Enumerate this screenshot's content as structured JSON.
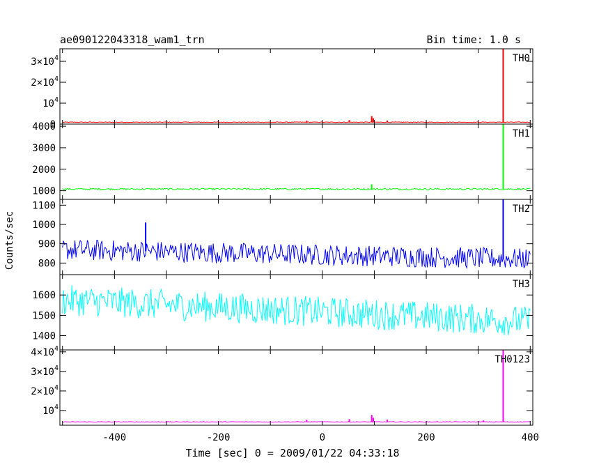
{
  "header": {
    "title": "ae090122043318_wam1_trn",
    "bin_time": "Bin time: 1.0 s"
  },
  "chart_data": {
    "type": "line",
    "title": "ae090122043318_wam1_trn",
    "subtitle": "Bin time: 1.0 s",
    "xlabel": "Time [sec] 0 = 2009/01/22 04:33:18",
    "ylabel": "Counts/sec",
    "xlim": [
      -505,
      405
    ],
    "x_ticks": [
      -400,
      -200,
      0,
      200,
      400
    ],
    "panels": [
      {
        "name": "TH0",
        "color": "#ff0000",
        "ylim": [
          0,
          36000
        ],
        "ticks": [
          {
            "v": 0,
            "base": "0",
            "exp": ""
          },
          {
            "v": 10000,
            "base": "10",
            "exp": "4"
          },
          {
            "v": 20000,
            "base": "2×10",
            "exp": "4"
          },
          {
            "v": 30000,
            "base": "3×10",
            "exp": "4"
          }
        ],
        "baseline": 900,
        "noise": 150,
        "spikes": [
          [
            -30,
            1600
          ],
          [
            52,
            1900
          ],
          [
            60,
            900
          ],
          [
            72,
            800
          ],
          [
            95,
            3800
          ],
          [
            98,
            2800
          ],
          [
            125,
            1700
          ],
          [
            155,
            700
          ],
          [
            310,
            1100
          ],
          [
            348,
            36000
          ]
        ]
      },
      {
        "name": "TH1",
        "color": "#00ff00",
        "ylim": [
          600,
          4100
        ],
        "ticks": [
          {
            "v": 1000,
            "base": "1000",
            "exp": ""
          },
          {
            "v": 2000,
            "base": "2000",
            "exp": ""
          },
          {
            "v": 3000,
            "base": "3000",
            "exp": ""
          },
          {
            "v": 4000,
            "base": "4000",
            "exp": ""
          }
        ],
        "baseline": 1080,
        "noise": 35,
        "spikes": [
          [
            95,
            1300
          ],
          [
            348,
            4100
          ]
        ]
      },
      {
        "name": "TH2",
        "color": "#0000ff",
        "ylim": [
          740,
          1130
        ],
        "ticks": [
          {
            "v": 800,
            "base": "800",
            "exp": ""
          },
          {
            "v": 900,
            "base": "900",
            "exp": ""
          },
          {
            "v": 1000,
            "base": "1000",
            "exp": ""
          },
          {
            "v": 1100,
            "base": "1100",
            "exp": ""
          }
        ],
        "trend": [
          [
            -500,
            870
          ],
          [
            400,
            820
          ]
        ],
        "noise": 55,
        "spikes": [
          [
            -340,
            1010
          ],
          [
            348,
            1130
          ]
        ]
      },
      {
        "name": "TH3",
        "color": "#00ffff",
        "ylim": [
          1330,
          1700
        ],
        "ticks": [
          {
            "v": 1400,
            "base": "1400",
            "exp": ""
          },
          {
            "v": 1500,
            "base": "1500",
            "exp": ""
          },
          {
            "v": 1600,
            "base": "1600",
            "exp": ""
          }
        ],
        "trend": [
          [
            -500,
            1575
          ],
          [
            400,
            1470
          ]
        ],
        "noise": 75,
        "spikes": []
      },
      {
        "name": "TH0123",
        "color": "#ff00ff",
        "ylim": [
          2500,
          41000
        ],
        "ticks": [
          {
            "v": 10000,
            "base": "10",
            "exp": "4"
          },
          {
            "v": 20000,
            "base": "2×10",
            "exp": "4"
          },
          {
            "v": 30000,
            "base": "3×10",
            "exp": "4"
          },
          {
            "v": 40000,
            "base": "4×10",
            "exp": "4"
          }
        ],
        "baseline": 4200,
        "noise": 150,
        "spikes": [
          [
            -30,
            5300
          ],
          [
            52,
            5600
          ],
          [
            95,
            7800
          ],
          [
            98,
            6300
          ],
          [
            125,
            5400
          ],
          [
            310,
            4900
          ],
          [
            348,
            41000
          ]
        ]
      }
    ]
  }
}
